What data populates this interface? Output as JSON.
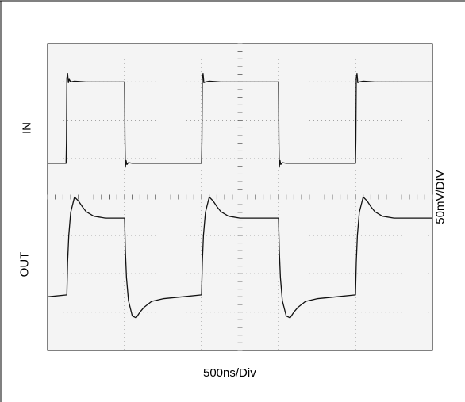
{
  "chart_data": {
    "type": "line",
    "title": "",
    "xlabel": "500ns/Div",
    "ylabel": "50mV/DIV",
    "grid": true,
    "x_divisions": 10,
    "y_divisions": 8,
    "xlim": [
      0,
      10
    ],
    "ylim": [
      0,
      8
    ],
    "channel_labels": [
      "IN",
      "OUT"
    ],
    "series": [
      {
        "name": "IN",
        "x": [
          0,
          0.48,
          0.49,
          0.5,
          0.52,
          0.54,
          0.56,
          0.6,
          0.7,
          1.0,
          1.5,
          1.9,
          2.0,
          2.01,
          2.02,
          2.04,
          2.06,
          2.1,
          2.2,
          2.5,
          3.0,
          3.5,
          3.9,
          4.0,
          4.01,
          4.02,
          4.04,
          4.06,
          4.1,
          4.2,
          4.5,
          5.0,
          5.5,
          5.9,
          6.0,
          6.01,
          6.02,
          6.04,
          6.06,
          6.1,
          6.2,
          6.5,
          7.0,
          7.5,
          7.9,
          8.0,
          8.01,
          8.02,
          8.04,
          8.06,
          8.1,
          8.2,
          8.5,
          9.0,
          9.5,
          10.0
        ],
        "values": [
          4.88,
          4.88,
          5.5,
          7.1,
          7.22,
          6.98,
          7.07,
          7.0,
          7.02,
          7.0,
          7.0,
          7.0,
          7.0,
          5.5,
          4.78,
          4.95,
          4.85,
          4.9,
          4.88,
          4.88,
          4.88,
          4.88,
          4.88,
          4.88,
          5.5,
          7.1,
          7.22,
          6.98,
          7.0,
          7.02,
          7.0,
          7.0,
          7.0,
          7.0,
          7.0,
          5.5,
          4.78,
          4.95,
          4.85,
          4.9,
          4.88,
          4.88,
          4.88,
          4.88,
          4.88,
          4.88,
          5.5,
          7.1,
          7.22,
          6.98,
          7.0,
          7.02,
          7.0,
          7.0,
          7.0,
          7.0
        ]
      },
      {
        "name": "OUT",
        "x": [
          0,
          0.5,
          0.52,
          0.55,
          0.6,
          0.7,
          0.8,
          0.9,
          1.0,
          1.2,
          1.5,
          2.0,
          2.02,
          2.05,
          2.1,
          2.2,
          2.3,
          2.4,
          2.5,
          2.7,
          3.0,
          3.5,
          4.0,
          4.02,
          4.05,
          4.1,
          4.2,
          4.3,
          4.4,
          4.5,
          4.7,
          5.0,
          5.5,
          6.0,
          6.02,
          6.05,
          6.1,
          6.2,
          6.3,
          6.4,
          6.5,
          6.7,
          7.0,
          7.5,
          8.0,
          8.02,
          8.05,
          8.1,
          8.2,
          8.3,
          8.4,
          8.5,
          8.7,
          9.0,
          9.5,
          10.0
        ],
        "values": [
          1.4,
          1.45,
          2.3,
          3.0,
          3.6,
          4.0,
          3.9,
          3.75,
          3.62,
          3.5,
          3.45,
          3.45,
          2.6,
          1.9,
          1.3,
          0.9,
          0.85,
          1.0,
          1.12,
          1.28,
          1.35,
          1.4,
          1.45,
          2.3,
          3.0,
          3.6,
          4.0,
          3.9,
          3.75,
          3.62,
          3.5,
          3.45,
          3.45,
          3.45,
          2.6,
          1.9,
          1.3,
          0.9,
          0.85,
          1.0,
          1.12,
          1.28,
          1.35,
          1.4,
          1.45,
          2.3,
          3.0,
          3.6,
          4.0,
          3.9,
          3.75,
          3.62,
          3.5,
          3.45,
          3.45,
          3.45
        ]
      }
    ]
  }
}
